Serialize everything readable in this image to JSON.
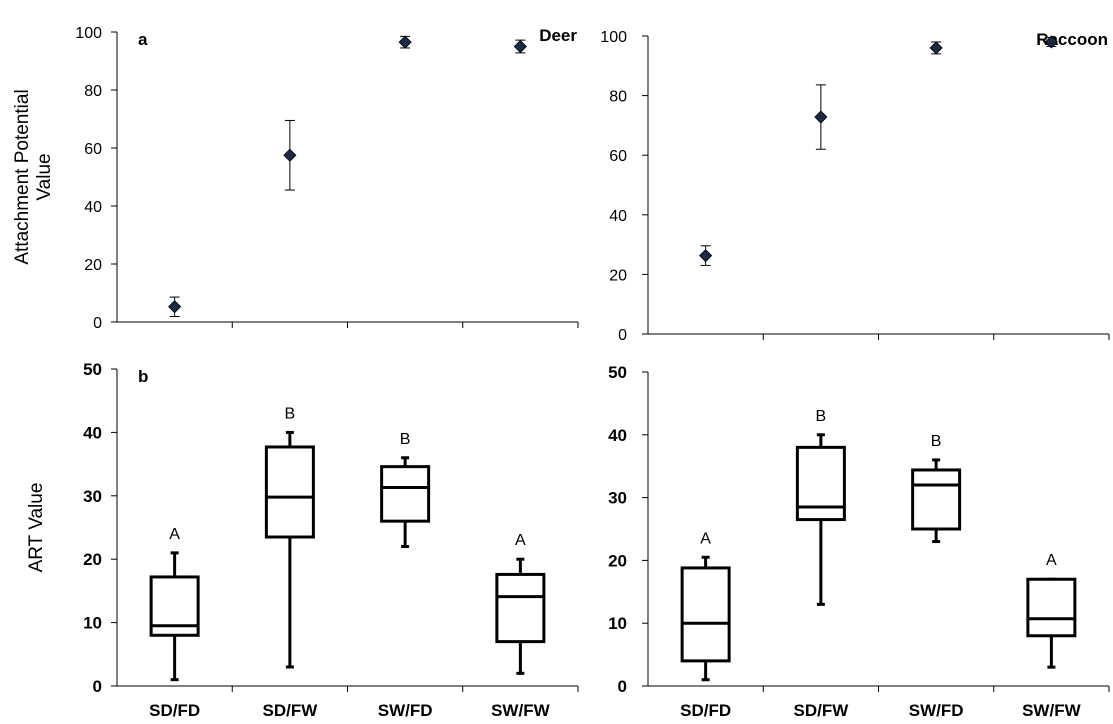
{
  "chart_data": [
    {
      "id": "deer-attachment",
      "type": "scatter",
      "panel": "a",
      "species": "Deer",
      "ylabel_lines": [
        "Attachment Potential",
        "Value"
      ],
      "categories": [
        "SD/FD",
        "SD/FW",
        "SW/FD",
        "SW/FW"
      ],
      "ylim": [
        0,
        100
      ],
      "yticks": [
        0,
        20,
        40,
        60,
        80,
        100
      ],
      "points": [
        {
          "category": "SD/FD",
          "value": 5.3,
          "err_low": 1.9,
          "err_high": 8.6
        },
        {
          "category": "SD/FW",
          "value": 57.5,
          "err_low": 45.5,
          "err_high": 69.5
        },
        {
          "category": "SW/FD",
          "value": 96.5,
          "err_low": 94.5,
          "err_high": 98.5
        },
        {
          "category": "SW/FW",
          "value": 95.0,
          "err_low": 92.8,
          "err_high": 97.2
        }
      ]
    },
    {
      "id": "raccoon-attachment",
      "type": "scatter",
      "panel": "",
      "species": "Raccoon",
      "categories": [
        "SD/FD",
        "SD/FW",
        "SW/FD",
        "SW/FW"
      ],
      "ylim": [
        0,
        100
      ],
      "yticks": [
        0,
        20,
        40,
        60,
        80,
        100
      ],
      "points": [
        {
          "category": "SD/FD",
          "value": 26.3,
          "err_low": 23.0,
          "err_high": 29.6
        },
        {
          "category": "SD/FW",
          "value": 72.8,
          "err_low": 62.0,
          "err_high": 83.6
        },
        {
          "category": "SW/FD",
          "value": 96.0,
          "err_low": 94.0,
          "err_high": 98.0
        },
        {
          "category": "SW/FW",
          "value": 98.0,
          "err_low": 96.5,
          "err_high": 99.5
        }
      ]
    },
    {
      "id": "deer-art",
      "type": "box",
      "panel": "b",
      "ylabel": "ART Value",
      "categories": [
        "SD/FD",
        "SD/FW",
        "SW/FD",
        "SW/FW"
      ],
      "ylim": [
        0,
        50
      ],
      "yticks": [
        0,
        10,
        20,
        30,
        40,
        50
      ],
      "boxes": [
        {
          "category": "SD/FD",
          "min": 1,
          "q1": 8,
          "median": 9.5,
          "q3": 17.2,
          "max": 21,
          "letter": "A"
        },
        {
          "category": "SD/FW",
          "min": 3,
          "q1": 23.5,
          "median": 29.8,
          "q3": 37.7,
          "max": 40,
          "letter": "B"
        },
        {
          "category": "SW/FD",
          "min": 22,
          "q1": 26,
          "median": 31.3,
          "q3": 34.6,
          "max": 36,
          "letter": "B"
        },
        {
          "category": "SW/FW",
          "min": 2,
          "q1": 7,
          "median": 14.1,
          "q3": 17.6,
          "max": 20,
          "letter": "A"
        }
      ]
    },
    {
      "id": "raccoon-art",
      "type": "box",
      "panel": "",
      "categories": [
        "SD/FD",
        "SD/FW",
        "SW/FD",
        "SW/FW"
      ],
      "ylim": [
        0,
        50
      ],
      "yticks": [
        0,
        10,
        20,
        30,
        40,
        50
      ],
      "boxes": [
        {
          "category": "SD/FD",
          "min": 1,
          "q1": 4,
          "median": 10,
          "q3": 18.8,
          "max": 20.5,
          "letter": "A"
        },
        {
          "category": "SD/FW",
          "min": 13,
          "q1": 26.5,
          "median": 28.5,
          "q3": 38,
          "max": 40,
          "letter": "B"
        },
        {
          "category": "SW/FD",
          "min": 23,
          "q1": 25,
          "median": 32,
          "q3": 34.4,
          "max": 36,
          "letter": "B"
        },
        {
          "category": "SW/FW",
          "min": 3,
          "q1": 8,
          "median": 10.7,
          "q3": 17,
          "max": 17,
          "letter": "A"
        }
      ]
    }
  ]
}
